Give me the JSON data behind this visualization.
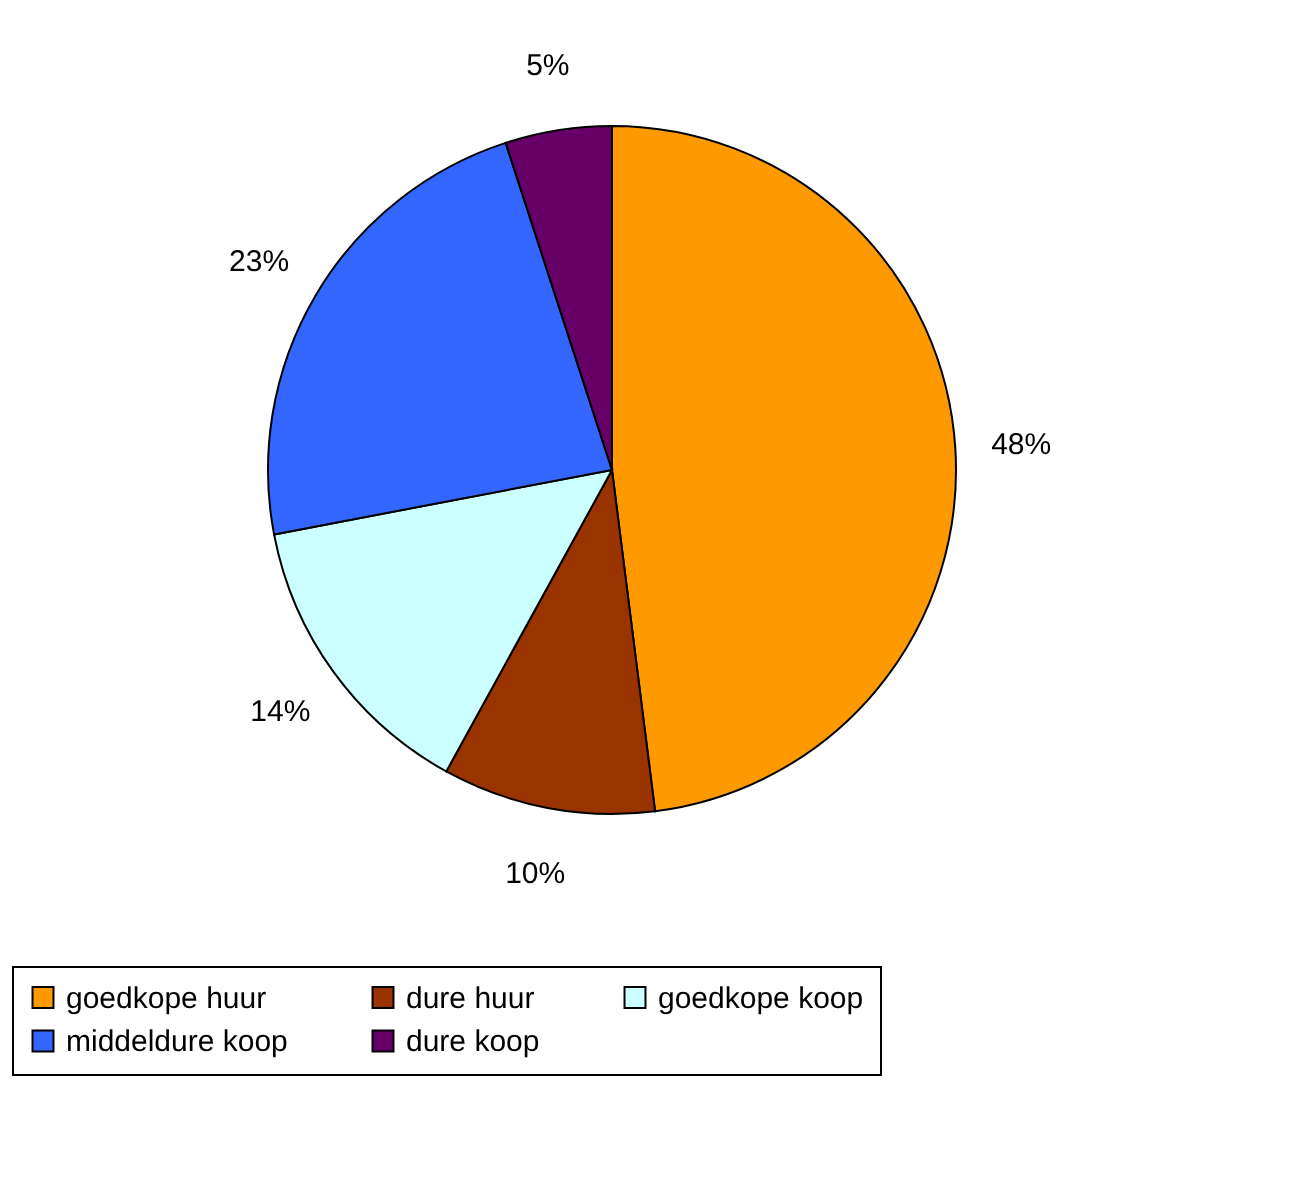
{
  "chart_data": {
    "type": "pie",
    "categories": [
      "goedkope huur",
      "dure huur",
      "goedkope koop",
      "middeldure koop",
      "dure koop"
    ],
    "values": [
      48,
      10,
      14,
      23,
      5
    ],
    "colors": [
      "#ff9900",
      "#993300",
      "#ccffff",
      "#3366ff",
      "#660066"
    ],
    "value_labels": [
      "48%",
      "10%",
      "14%",
      "23%",
      "5%"
    ],
    "legend": "bottom"
  }
}
